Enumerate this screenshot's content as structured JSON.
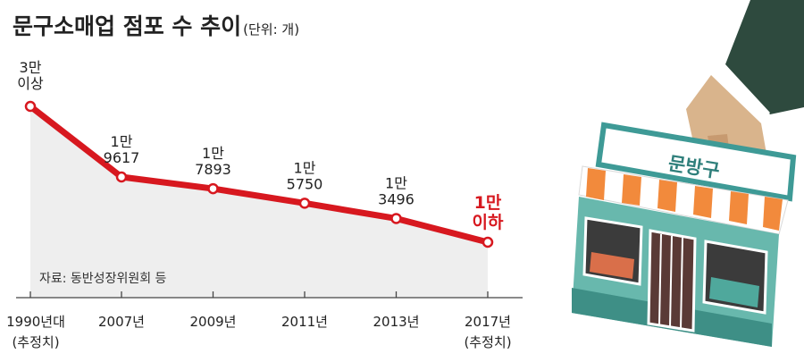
{
  "title": "문구소매업 점포 수 추이",
  "unit": "(단위: 개)",
  "source": "자료: 동반성장위원회 등",
  "shop_sign": "문방구",
  "colors": {
    "line": "#d7181f",
    "area": "#eeeeee",
    "highlight": "#d7181f",
    "text": "#222222"
  },
  "chart_data": {
    "type": "line",
    "title": "문구소매업 점포 수 추이",
    "ylabel": "(단위: 개)",
    "categories": [
      "1990년대\n(추정치)",
      "2007년",
      "2009년",
      "2011년",
      "2013년",
      "2017년\n(추정치)"
    ],
    "values": [
      30000,
      19617,
      17893,
      15750,
      13496,
      10000
    ],
    "data_labels": [
      "3만\n이상",
      "1만\n9617",
      "1만\n7893",
      "1만\n5750",
      "1만\n3496",
      "1만\n이하"
    ],
    "ylim": [
      0,
      32000
    ],
    "grid": false,
    "legend": "none"
  }
}
